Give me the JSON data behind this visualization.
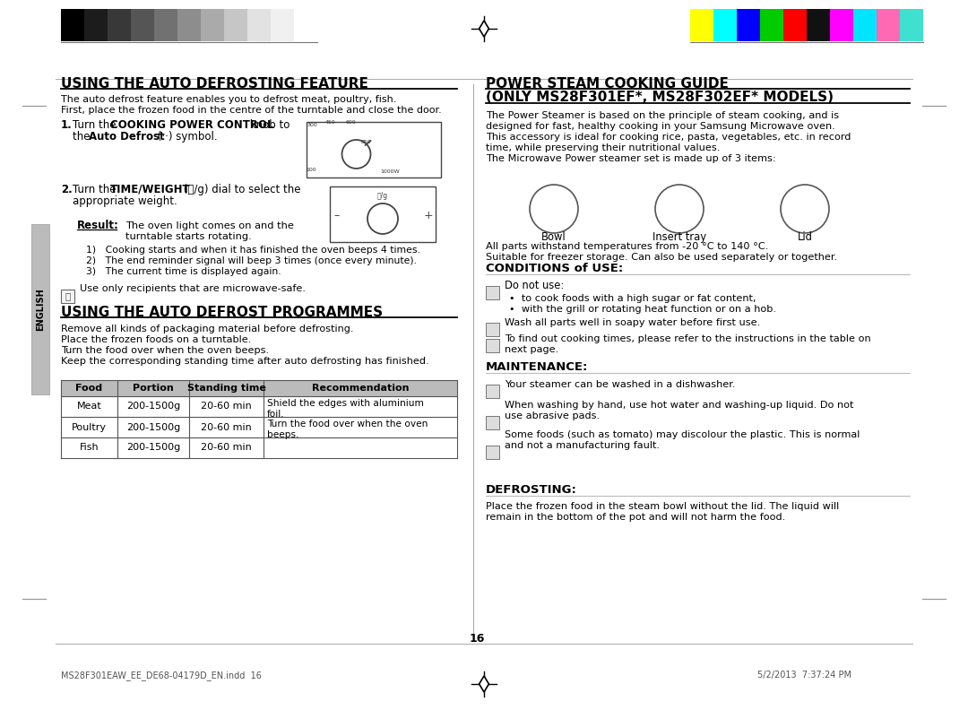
{
  "page_bg": "#ffffff",
  "page_num": "16",
  "footer_left": "MS28F301EAW_EE_DE68-04179D_EN.indd  16",
  "footer_right": "5/2/2013  7:37:24 PM",
  "left_section_title": "USING THE AUTO DEFROSTING FEATURE",
  "left_section_intro_1": "The auto defrost feature enables you to defrost meat, poultry, fish.",
  "left_section_intro_2": "First, place the frozen food in the centre of the turntable and close the door.",
  "result_label": "Result:",
  "result_text_1": "The oven light comes on and the",
  "result_text_2": "turntable starts rotating.",
  "result_list": [
    "Cooking starts and when it has finished the oven beeps 4 times.",
    "The end reminder signal will beep 3 times (once every minute).",
    "The current time is displayed again."
  ],
  "note_text": "Use only recipients that are microwave-safe.",
  "left_section2_title": "USING THE AUTO DEFROST PROGRAMMES",
  "left_section2_intro": [
    "Remove all kinds of packaging material before defrosting.",
    "Place the frozen foods on a turntable.",
    "Turn the food over when the oven beeps.",
    "Keep the corresponding standing time after auto defrosting has finished."
  ],
  "table_headers": [
    "Food",
    "Portion",
    "Standing time",
    "Recommendation"
  ],
  "table_rows": [
    [
      "Meat",
      "200-1500g",
      "20-60 min"
    ],
    [
      "Poultry",
      "200-1500g",
      "20-60 min"
    ],
    [
      "Fish",
      "200-1500g",
      "20-60 min"
    ]
  ],
  "rec_text": "Shield the edges with aluminium\nfoil.\nTurn the food over when the oven\nbeeps.",
  "right_section_title": "POWER STEAM COOKING GUIDE",
  "right_section_subtitle": "(ONLY MS28F301EF*, MS28F302EF* MODELS)",
  "right_section_intro": [
    "The Power Steamer is based on the principle of steam cooking, and is",
    "designed for fast, healthy cooking in your Samsung Microwave oven.",
    "This accessory is ideal for cooking rice, pasta, vegetables, etc. in record",
    "time, while preserving their nutritional values.",
    "The Microwave Power steamer set is made up of 3 items:"
  ],
  "bowl_label": "Bowl",
  "insert_label": "Insert tray",
  "lid_label": "Lid",
  "parts_text1": "All parts withstand temperatures from -20 °C to 140 °C.",
  "parts_text2": "Suitable for freezer storage. Can also be used separately or together.",
  "conditions_title": "CONDITIONS of USE:",
  "do_not_use": "Do not use:",
  "conditions_bullets": [
    "to cook foods with a high sugar or fat content,",
    "with the grill or rotating heat function or on a hob."
  ],
  "wash_text": "Wash all parts well in soapy water before first use.",
  "find_text_1": "To find out cooking times, please refer to the instructions in the table on",
  "find_text_2": "next page.",
  "maintenance_title": "MAINTENANCE:",
  "maintenance_items": [
    "Your steamer can be washed in a dishwasher.",
    "When washing by hand, use hot water and washing-up liquid. Do not\nuse abrasive pads.",
    "Some foods (such as tomato) may discolour the plastic. This is normal\nand not a manufacturing fault."
  ],
  "defrosting_title": "DEFROSTING:",
  "defrosting_text_1": "Place the frozen food in the steam bowl without the lid. The liquid will",
  "defrosting_text_2": "remain in the bottom of the pot and will not harm the food.",
  "sidebar_text": "ENGLISH",
  "color_bar_left": [
    "#000000",
    "#1c1c1c",
    "#383838",
    "#555555",
    "#717171",
    "#8d8d8d",
    "#aaaaaa",
    "#c6c6c6",
    "#e2e2e2",
    "#f0f0f0",
    "#ffffff"
  ],
  "color_bar_right": [
    "#ffff00",
    "#00ffff",
    "#0000ff",
    "#00cc00",
    "#ff0000",
    "#111111",
    "#ff00ff",
    "#00e5ff",
    "#ff69b4",
    "#40e0d0"
  ]
}
